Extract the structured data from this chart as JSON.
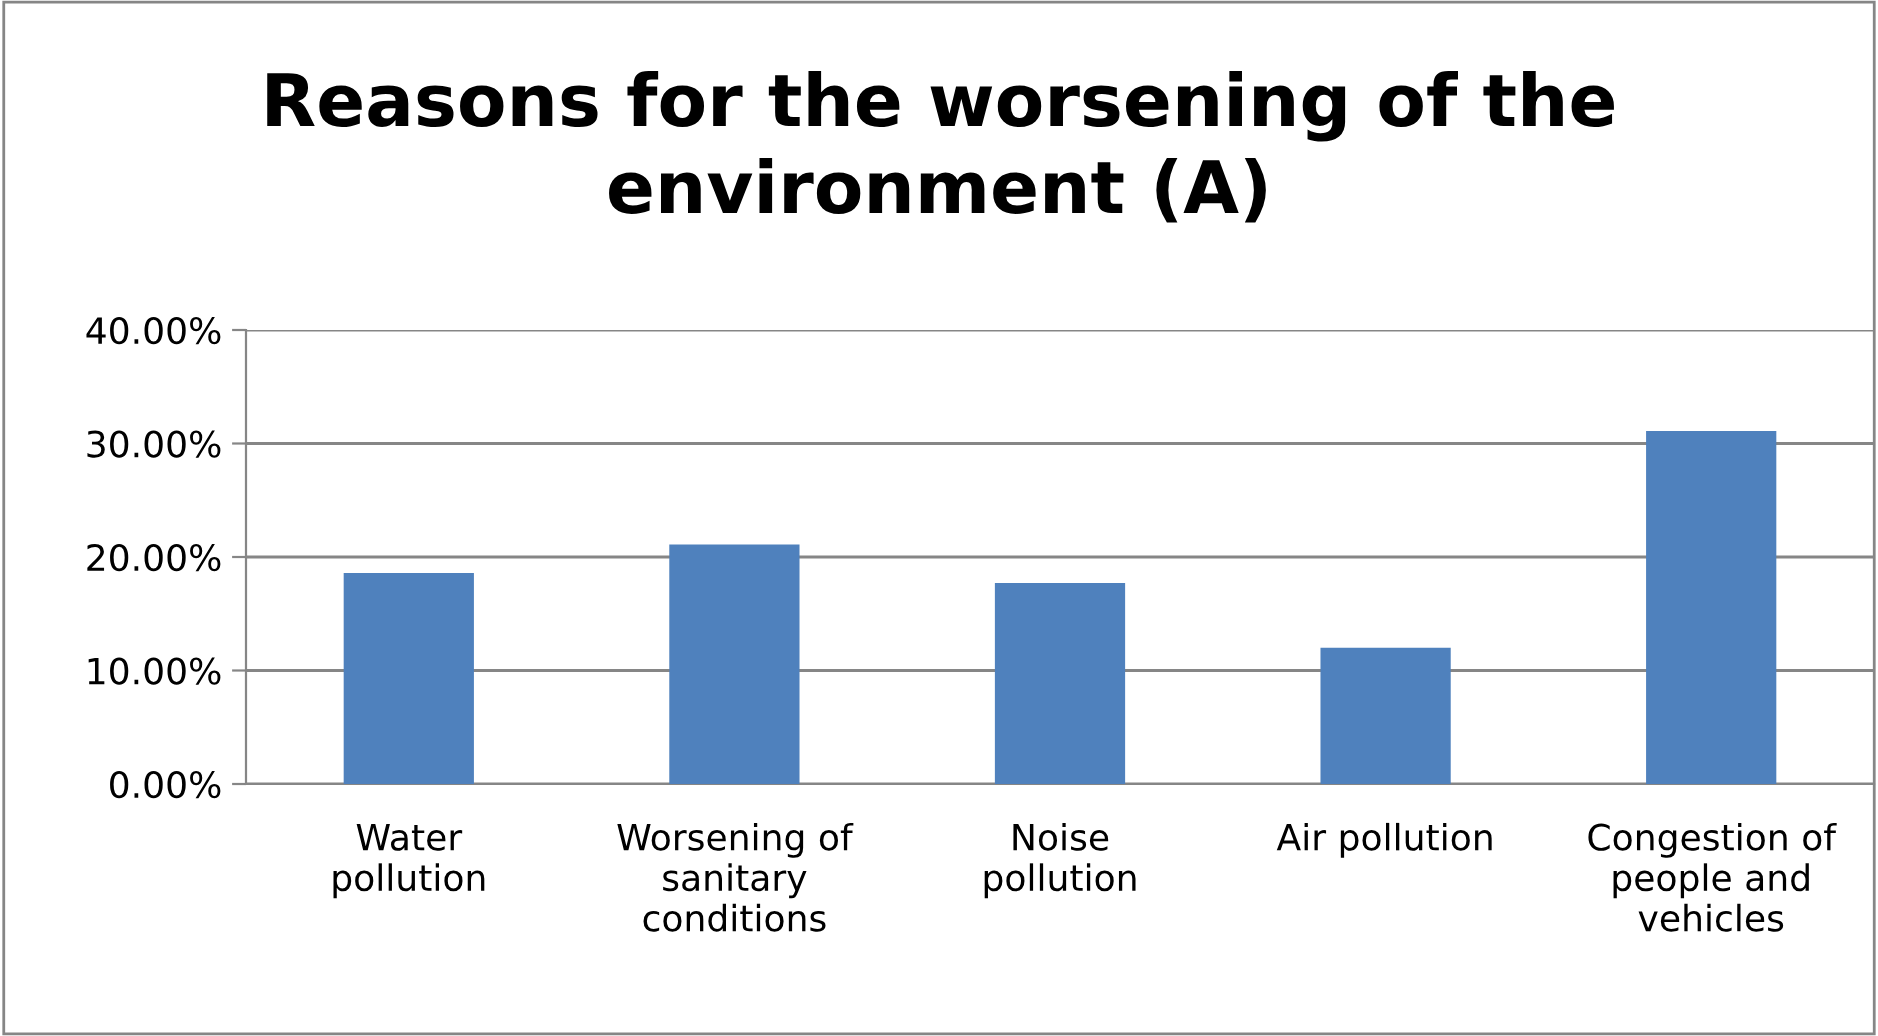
{
  "chart_data": {
    "type": "bar",
    "title": "Reasons for the worsening of the environment (A)",
    "categories": [
      "Water pollution",
      "Worsening of sanitary conditions",
      "Noise pollution",
      "Air pollution",
      "Congestion of people and vehicles"
    ],
    "values": [
      18.6,
      21.1,
      17.7,
      12.0,
      31.1
    ],
    "color": "#4f81bd",
    "ylim": [
      0,
      40
    ],
    "yticks": [
      {
        "value": 0,
        "label": "0.00%"
      },
      {
        "value": 10,
        "label": "10.00%"
      },
      {
        "value": 20,
        "label": "20.00%"
      },
      {
        "value": 30,
        "label": "30.00%"
      },
      {
        "value": 40,
        "label": "40.00%"
      }
    ],
    "grid": "y",
    "legend": false
  }
}
